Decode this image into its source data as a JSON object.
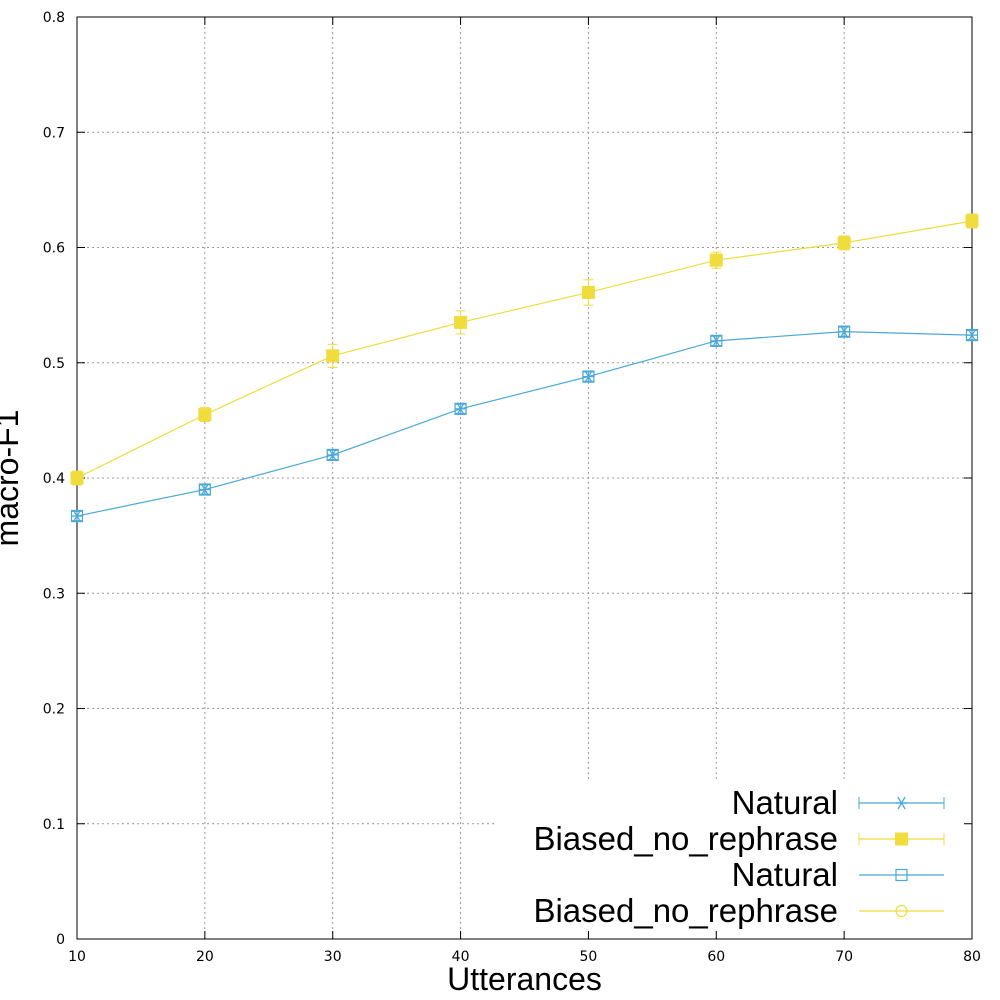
{
  "chart_data": {
    "type": "line",
    "title": "",
    "xlabel": "Utterances",
    "ylabel": "macro-F1",
    "xlim": [
      10,
      80
    ],
    "ylim": [
      0,
      0.8
    ],
    "x_ticks": [
      "10",
      "20",
      "30",
      "40",
      "50",
      "60",
      "70",
      "80"
    ],
    "y_ticks": [
      "0",
      "0.1",
      "0.2",
      "0.3",
      "0.4",
      "0.5",
      "0.6",
      "0.7",
      "0.8"
    ],
    "grid": true,
    "legend_position": "bottom-right",
    "x": [
      10,
      20,
      30,
      40,
      50,
      60,
      70,
      80
    ],
    "series": [
      {
        "name": "Natural",
        "kind": "errorbars",
        "marker": "asterisk",
        "color": "#4aa8d8",
        "values": [
          0.367,
          0.39,
          0.42,
          0.46,
          0.488,
          0.519,
          0.527,
          0.524
        ],
        "errors": [
          0.004,
          0.004,
          0.004,
          0.004,
          0.004,
          0.004,
          0.004,
          0.004
        ]
      },
      {
        "name": "Biased_no_rephrase",
        "kind": "errorbars",
        "marker": "filled-square",
        "color": "#f0dc3c",
        "values": [
          0.4,
          0.455,
          0.506,
          0.535,
          0.561,
          0.589,
          0.604,
          0.623
        ],
        "errors": [
          0.006,
          0.006,
          0.01,
          0.01,
          0.011,
          0.007,
          0.006,
          0.006
        ]
      },
      {
        "name": "Natural",
        "kind": "line",
        "marker": "open-square",
        "color": "#4aa8d8",
        "values": [
          0.367,
          0.39,
          0.42,
          0.46,
          0.488,
          0.519,
          0.527,
          0.524
        ]
      },
      {
        "name": "Biased_no_rephrase",
        "kind": "line",
        "marker": "open-circle",
        "color": "#f0dc3c",
        "values": [
          0.4,
          0.455,
          0.506,
          0.535,
          0.561,
          0.589,
          0.604,
          0.623
        ]
      }
    ]
  }
}
